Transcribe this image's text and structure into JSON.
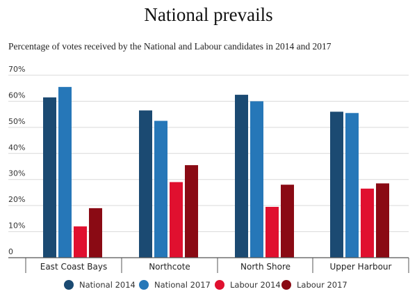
{
  "chart_data": {
    "type": "bar",
    "title": "National prevails",
    "subtitle": "Percentage of votes received by the National and Labour candidates in 2014 and 2017",
    "categories": [
      "East Coast Bays",
      "Northcote",
      "North Shore",
      "Upper Harbour"
    ],
    "series": [
      {
        "name": "National 2014",
        "color": "#1b4a72",
        "values": [
          61.5,
          56.5,
          62.5,
          56
        ]
      },
      {
        "name": "National 2017",
        "color": "#2677b8",
        "values": [
          65.5,
          52.5,
          60,
          55.5
        ]
      },
      {
        "name": "Labour 2014",
        "color": "#e0102f",
        "values": [
          12,
          29,
          19.5,
          26.5
        ]
      },
      {
        "name": "Labour 2017",
        "color": "#8a0a14",
        "values": [
          19,
          35.5,
          28,
          28.5
        ]
      }
    ],
    "yticks": [
      "70%",
      "60%",
      "50%",
      "40%",
      "30%",
      "20%",
      "10%",
      "0"
    ],
    "ylim": [
      0,
      70
    ],
    "grid": true,
    "legend": "bottom"
  }
}
